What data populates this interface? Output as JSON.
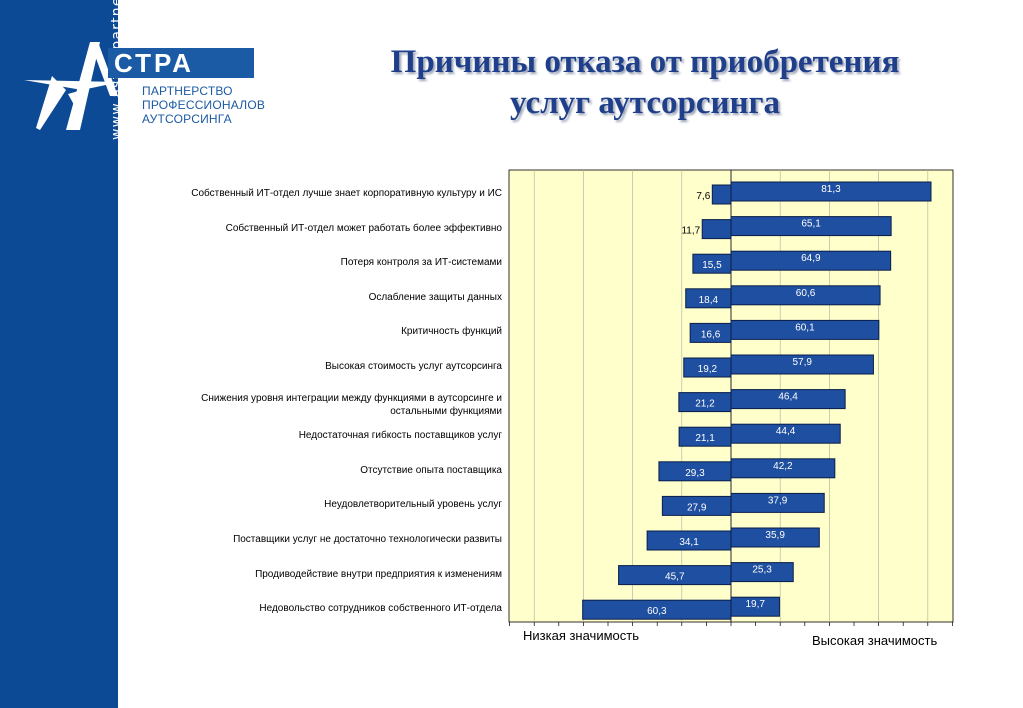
{
  "sidebar": {
    "url": "www.astra-partners.ru"
  },
  "logo": {
    "name": "СТРА",
    "subtitle": [
      "ПАРТНЕРСТВО",
      "ПРОФЕССИОНАЛОВ",
      "АУТСОРСИНГА"
    ]
  },
  "title": [
    "Причины отказа от приобретения",
    "услуг аутсорсинга"
  ],
  "colors": {
    "sidebar": "#0d4a96",
    "bar": "#1f4fa0",
    "plot_bg": "#ffffcc",
    "title": "#1f3f8a"
  },
  "chart_data": {
    "type": "bar",
    "orientation": "horizontal-diverging",
    "categories": [
      "Собственный ИТ-отдел лучше знает корпоративную культуру и ИС",
      "Собственный ИТ-отдел может работать более эффективно",
      "Потеря контроля за ИТ-системами",
      "Ослабление защиты данных",
      "Критичность функций",
      "Высокая стоимость услуг аутсорсинга",
      "Снижения уровня интеграции между функциями в аутсорсинге и остальными функциями",
      "Недостаточная гибкость поставщиков услуг",
      "Отсутствие опыта поставщика",
      "Неудовлетворительный уровень услуг",
      "Поставщики услуг не достаточно технологически развиты",
      "Продиводействие внутри предприятия к изменениям",
      "Недовольство сотрудников собственного ИТ-отдела"
    ],
    "series": [
      {
        "name": "Низкая значимость",
        "values": [
          7.6,
          11.7,
          15.5,
          18.4,
          16.6,
          19.2,
          21.2,
          21.1,
          29.3,
          27.9,
          34.1,
          45.7,
          60.3
        ],
        "labels": [
          "7,6",
          "11,7",
          "15,5",
          "18,4",
          "16,6",
          "19,2",
          "21,2",
          "21,1",
          "29,3",
          "27,9",
          "34,1",
          "45,7",
          "60,3"
        ]
      },
      {
        "name": "Высокая значимость",
        "values": [
          81.3,
          65.1,
          64.9,
          60.6,
          60.1,
          57.9,
          46.4,
          44.4,
          42.2,
          37.9,
          35.9,
          25.3,
          19.7
        ],
        "labels": [
          "81,3",
          "65,1",
          "64,9",
          "60,6",
          "60,1",
          "57,9",
          "46,4",
          "44,4",
          "42,2",
          "37,9",
          "35,9",
          "25,3",
          "19,7"
        ]
      }
    ],
    "xlim": [
      -100,
      100
    ],
    "grid": true,
    "legend": [
      "Низкая значимость",
      "Высокая значимость"
    ]
  }
}
